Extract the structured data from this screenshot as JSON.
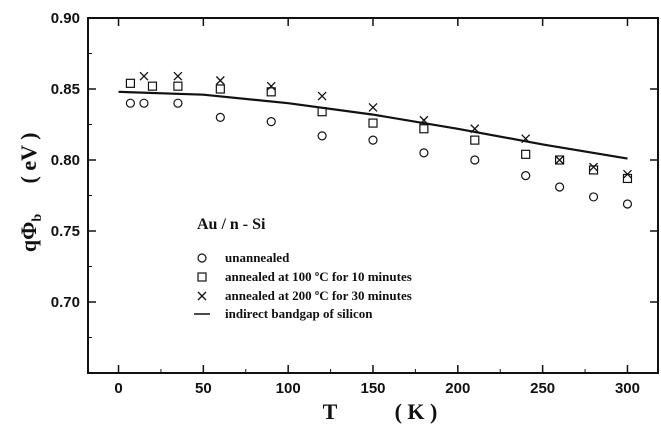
{
  "chart_data": {
    "type": "scatter",
    "xlabel_main": "T",
    "xlabel_unit": "( K )",
    "ylabel_main": "qΦ",
    "ylabel_sub": "b",
    "ylabel_unit": "( eV )",
    "xlim": [
      -18,
      318
    ],
    "ylim": [
      0.65,
      0.9
    ],
    "xticks": [
      0,
      50,
      100,
      150,
      200,
      250,
      300
    ],
    "yticks": [
      0.7,
      0.75,
      0.8,
      0.85,
      0.9
    ],
    "ytick_labels": [
      "0.70",
      "0.75",
      "0.80",
      "0.85",
      "0.90"
    ],
    "panel_label": "Au / n - Si",
    "legend_position": "lower-left",
    "grid": false,
    "series": [
      {
        "name": "unannealed",
        "marker": "circle",
        "x": [
          7,
          15,
          35,
          60,
          90,
          120,
          150,
          180,
          210,
          240,
          260,
          280,
          300
        ],
        "y": [
          0.84,
          0.84,
          0.84,
          0.83,
          0.827,
          0.817,
          0.814,
          0.805,
          0.8,
          0.789,
          0.781,
          0.774,
          0.769
        ]
      },
      {
        "name": "annealed at 100 ºC for 10 minutes",
        "marker": "square",
        "x": [
          7,
          20,
          35,
          60,
          90,
          120,
          150,
          180,
          210,
          240,
          260,
          280,
          300
        ],
        "y": [
          0.854,
          0.852,
          0.852,
          0.85,
          0.848,
          0.834,
          0.826,
          0.822,
          0.814,
          0.804,
          0.8,
          0.793,
          0.787
        ]
      },
      {
        "name": "annealed at 200 ºC for 30 minutes",
        "marker": "x",
        "x": [
          15,
          35,
          60,
          90,
          120,
          150,
          180,
          210,
          240,
          260,
          280,
          300
        ],
        "y": [
          0.859,
          0.859,
          0.856,
          0.852,
          0.845,
          0.837,
          0.828,
          0.822,
          0.815,
          0.8,
          0.795,
          0.79
        ]
      },
      {
        "name": "indirect bandgap of silicon",
        "marker": "line",
        "x": [
          0,
          50,
          100,
          150,
          200,
          250,
          300
        ],
        "y": [
          0.848,
          0.846,
          0.84,
          0.832,
          0.822,
          0.811,
          0.801
        ]
      }
    ]
  }
}
